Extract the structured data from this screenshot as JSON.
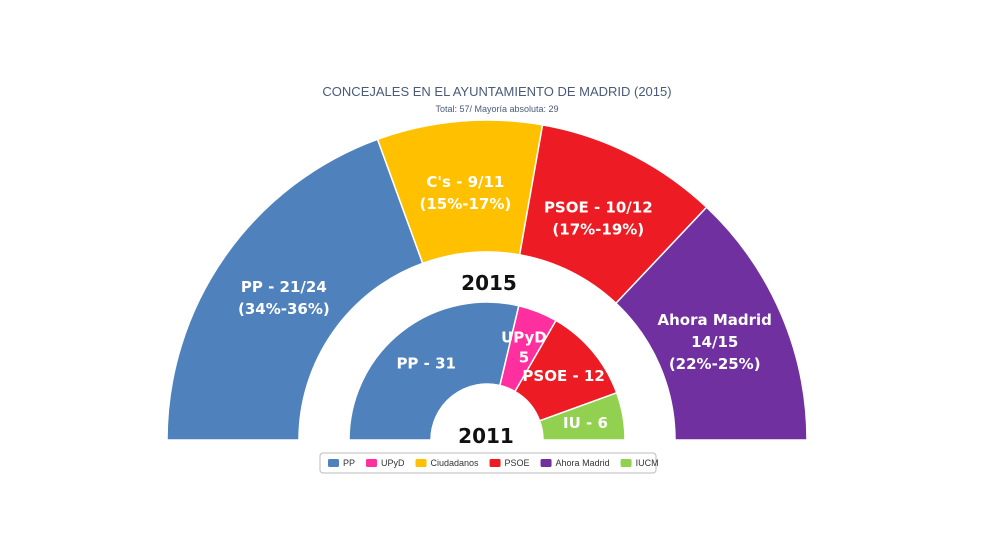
{
  "chart_data": [
    {
      "type": "pie",
      "title": "CONCEJALES EN EL AYUNTAMIENTO DE MADRID (2015)",
      "subtitle": "Total: 57/ Mayoría absoluta: 29",
      "year": "2015",
      "series": [
        {
          "name": "PP",
          "value": 21,
          "lines": [
            "PP - 21/24",
            "(34%-36%)"
          ],
          "color": "#4f81bd"
        },
        {
          "name": "Ciudadanos",
          "value": 9,
          "lines": [
            "C's - 9/11",
            "(15%-17%)"
          ],
          "color": "#ffc000"
        },
        {
          "name": "PSOE",
          "value": 10,
          "lines": [
            "PSOE - 10/12",
            "(17%-19%)"
          ],
          "color": "#ed1c24"
        },
        {
          "name": "Ahora Madrid",
          "value": 14,
          "lines": [
            "Ahora Madrid",
            "14/15",
            "(22%-25%)"
          ],
          "color": "#7030a0"
        }
      ]
    },
    {
      "type": "pie",
      "year": "2011",
      "series": [
        {
          "name": "PP",
          "value": 31,
          "lines": [
            "PP - 31"
          ],
          "color": "#4f81bd"
        },
        {
          "name": "UPyD",
          "value": 5,
          "lines": [
            "UPyD",
            "5"
          ],
          "color": "#ff2fa0"
        },
        {
          "name": "PSOE",
          "value": 12,
          "lines": [
            "PSOE - 12"
          ],
          "color": "#ed1c24"
        },
        {
          "name": "IUCM",
          "value": 6,
          "lines": [
            "IU - 6"
          ],
          "color": "#92d050"
        }
      ]
    }
  ],
  "legend": {
    "placement": "bottom",
    "items": [
      {
        "label": "PP",
        "color": "#4f81bd"
      },
      {
        "label": "UPyD",
        "color": "#ff2fa0"
      },
      {
        "label": "Ciudadanos",
        "color": "#ffc000"
      },
      {
        "label": "PSOE",
        "color": "#ed1c24"
      },
      {
        "label": "Ahora Madrid",
        "color": "#7030a0"
      },
      {
        "label": "IUCM",
        "color": "#92d050"
      }
    ]
  }
}
